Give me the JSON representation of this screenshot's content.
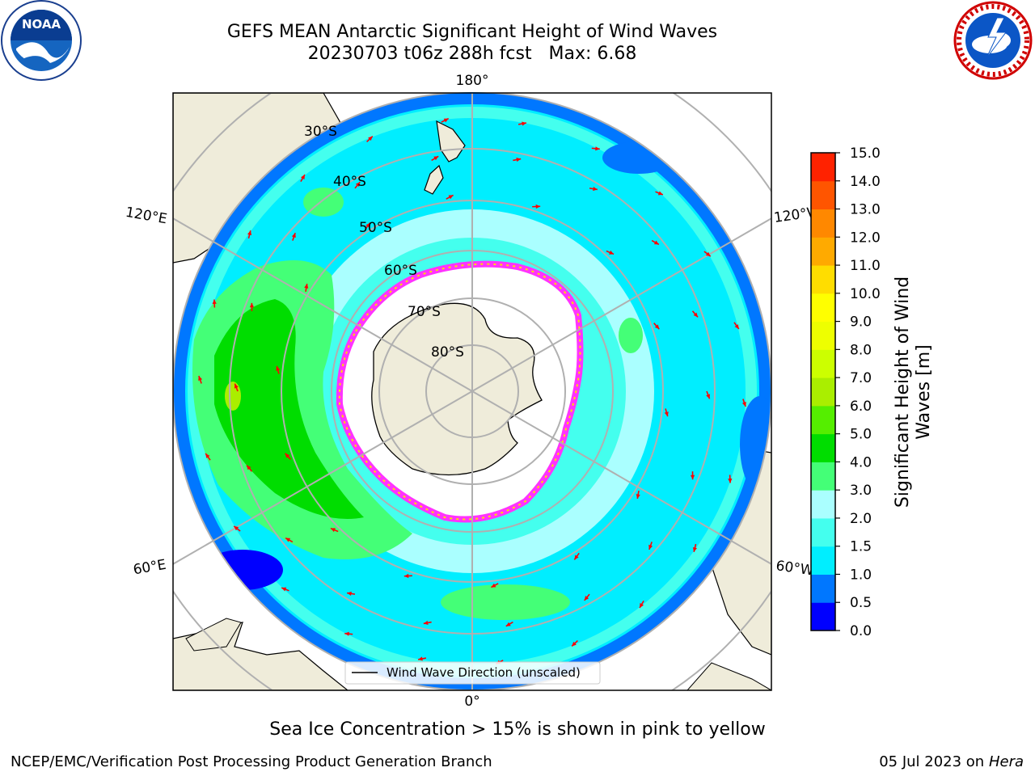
{
  "title": {
    "line1": "GEFS MEAN Antarctic Significant Height of Wind Waves",
    "line2": "20230703 t06z 288h fcst   Max: 6.68"
  },
  "logos": {
    "left": {
      "name": "noaa-logo",
      "text": "NOAA"
    },
    "right": {
      "name": "nws-logo"
    }
  },
  "map": {
    "projection": "south-polar-stereographic",
    "longitude_labels": [
      "180°",
      "120°E",
      "120°W",
      "60°E",
      "60°W",
      "0°"
    ],
    "latitude_labels": [
      "30°S",
      "40°S",
      "50°S",
      "60°S",
      "70°S",
      "80°S"
    ],
    "legend_label": "Wind Wave Direction (unscaled)",
    "colors": {
      "land": "#efecda",
      "ice_edge": "#ff33ff",
      "arrow": "#ff0000",
      "grid": "#b0b0b0"
    }
  },
  "colorbar": {
    "label_line1": "Significant Height of Wind",
    "label_line2": "Waves [m]",
    "ticks": [
      "0.0",
      "0.5",
      "1.0",
      "1.5",
      "2.0",
      "3.0",
      "4.0",
      "5.0",
      "6.0",
      "7.0",
      "8.0",
      "9.0",
      "10.0",
      "11.0",
      "12.0",
      "13.0",
      "14.0",
      "15.0"
    ],
    "colors": [
      "#0000ff",
      "#0077ff",
      "#00eeff",
      "#44ffee",
      "#aaffff",
      "#44ff77",
      "#00dd00",
      "#55ee00",
      "#aaee00",
      "#ccff00",
      "#eeff00",
      "#ffff00",
      "#ffdd00",
      "#ffaa00",
      "#ff8800",
      "#ff5500",
      "#ff2200"
    ]
  },
  "caption": "Sea Ice Concentration > 15% is shown in pink to yellow",
  "footer": {
    "left": "NCEP/EMC/Verification Post Processing Product Generation Branch",
    "date": "05 Jul 2023 on ",
    "machine": "Hera"
  }
}
